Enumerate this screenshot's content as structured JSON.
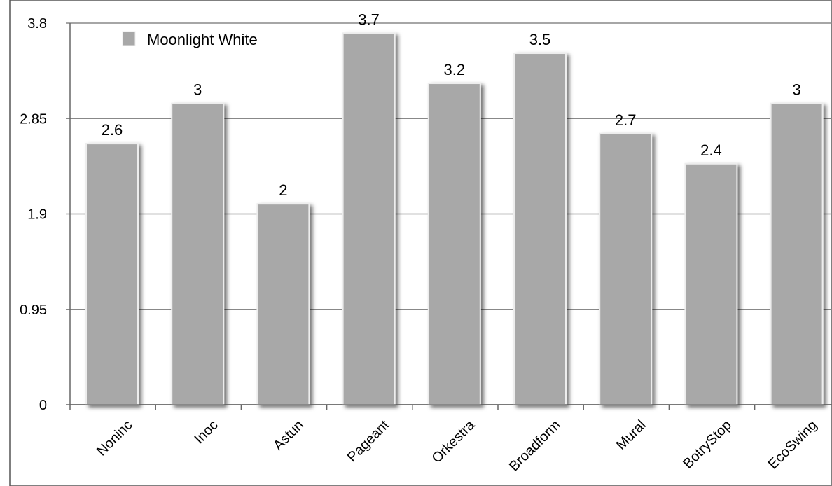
{
  "chart_data": {
    "type": "bar",
    "categories": [
      "Noninc",
      "Inoc",
      "Astun",
      "Pageant",
      "Orkestra",
      "Broadform",
      "Mural",
      "BotryStop",
      "EcoSwing"
    ],
    "series": [
      {
        "name": "Moonlight White",
        "values": [
          2.6,
          3,
          2,
          3.7,
          3.2,
          3.5,
          2.7,
          2.4,
          3
        ]
      }
    ],
    "data_labels": [
      "2.6",
      "3",
      "2",
      "3.7",
      "3.2",
      "3.5",
      "2.7",
      "2.4",
      "3"
    ],
    "ylim": [
      0,
      3.8
    ],
    "yticks": [
      0,
      0.95,
      1.9,
      2.85,
      3.8
    ],
    "ytick_labels": [
      "0",
      "0.95",
      "1.9",
      "2.85",
      "3.8"
    ],
    "title": "",
    "xlabel": "",
    "ylabel": "",
    "grid": true,
    "legend_position": "top-left",
    "colors": {
      "bar": "#a8a8a8",
      "bar_edge": "#ededed",
      "grid": "#888888",
      "axis": "#666666"
    }
  }
}
